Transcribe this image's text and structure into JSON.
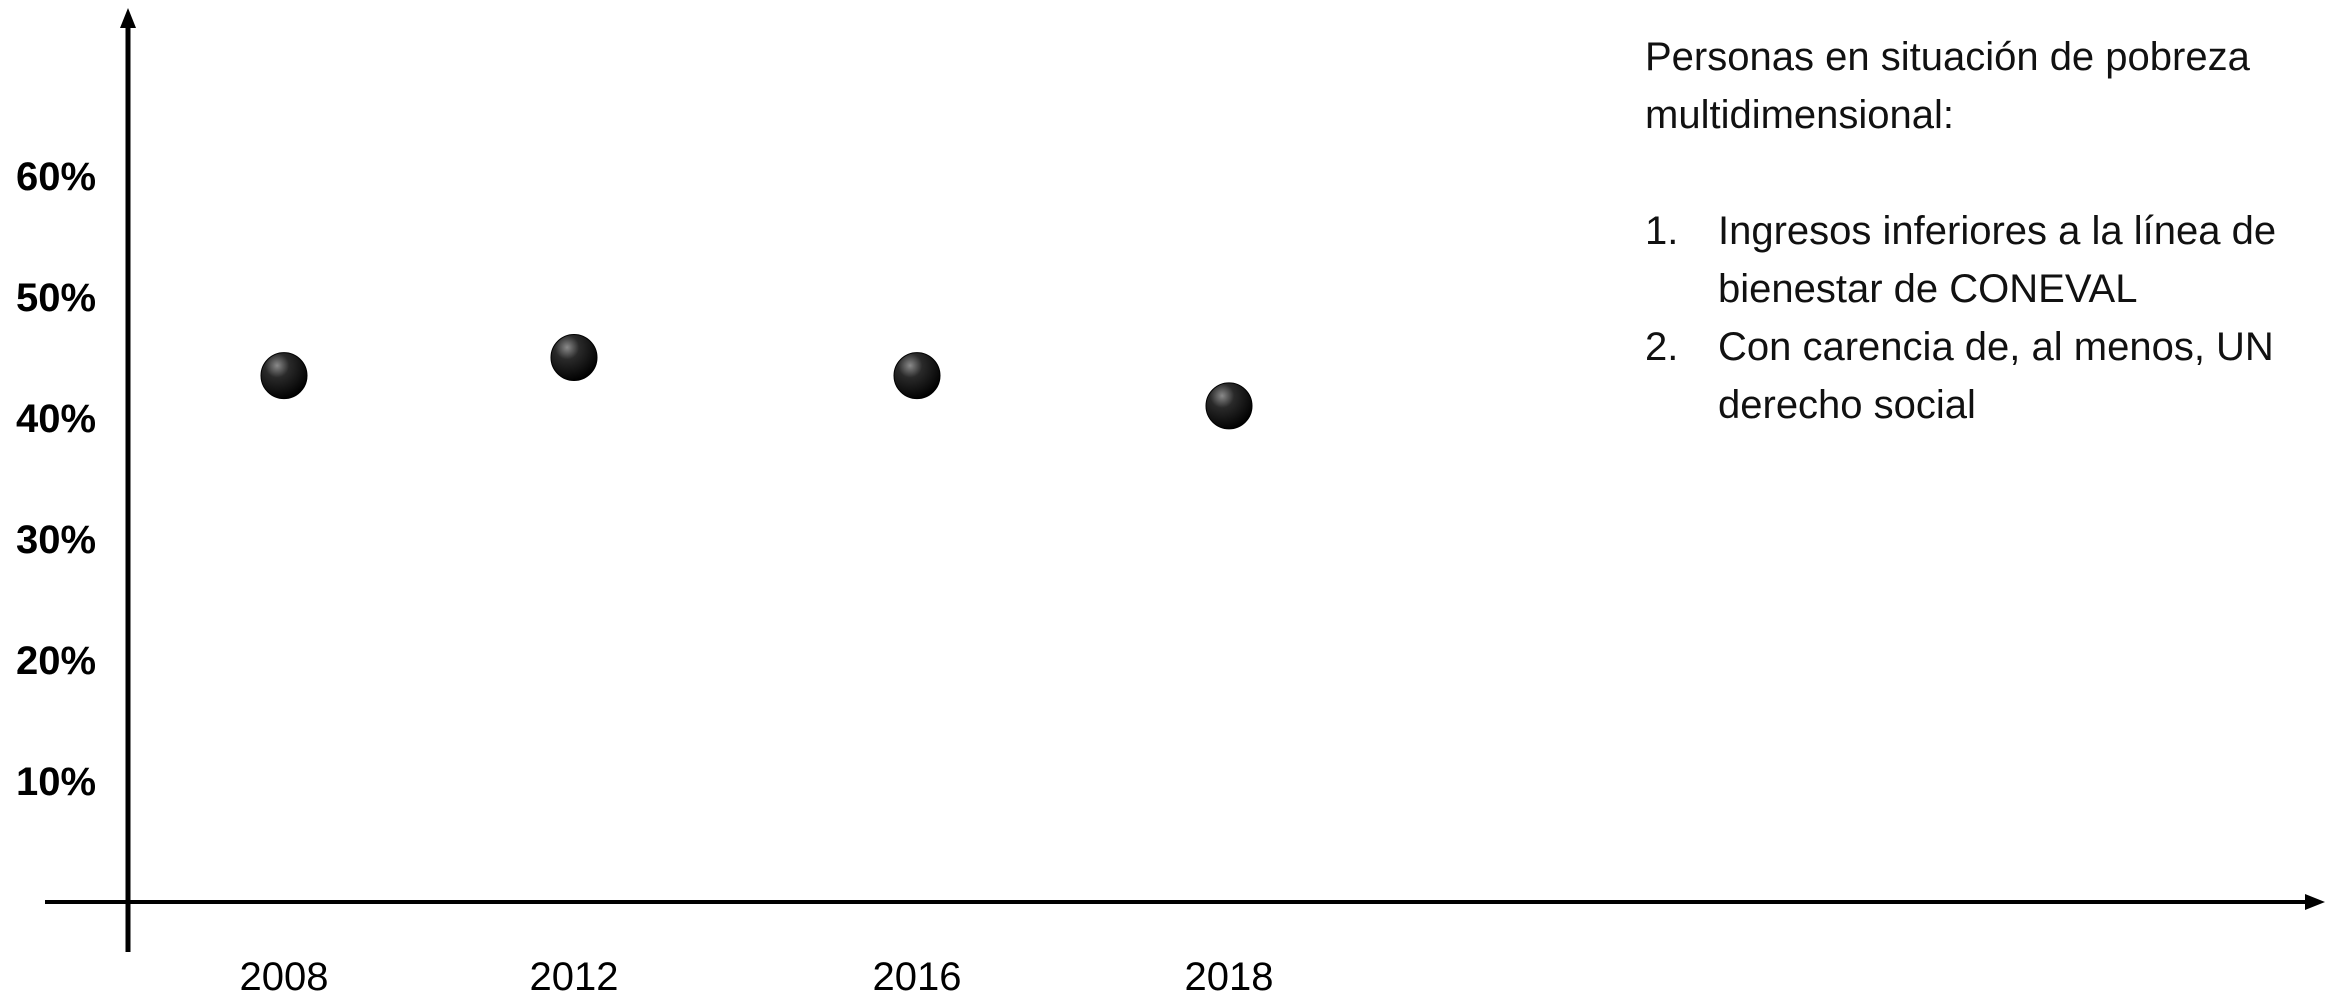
{
  "chart_data": {
    "type": "scatter",
    "x": [
      "2008",
      "2012",
      "2016",
      "2018"
    ],
    "series": [
      {
        "values": [
          43.5,
          45,
          43.5,
          41
        ]
      }
    ],
    "ylim": [
      0,
      70
    ],
    "yticks": [
      10,
      20,
      30,
      40,
      50,
      60
    ],
    "ytick_labels": [
      "10%",
      "20%",
      "30%",
      "40%",
      "50%",
      "60%"
    ],
    "xtick_labels": [
      "2008",
      "2012",
      "2016",
      "2018"
    ],
    "grid": false,
    "marker_color": "#000000",
    "axis_color": "#000000"
  },
  "annotation": {
    "heading": "Personas en situación de pobreza multidimensional:",
    "items": [
      {
        "num": "1.",
        "text": "Ingresos inferiores a la línea de bienestar de CONEVAL"
      },
      {
        "num": "2.",
        "text": "Con carencia de, al menos, UN derecho social"
      }
    ]
  }
}
